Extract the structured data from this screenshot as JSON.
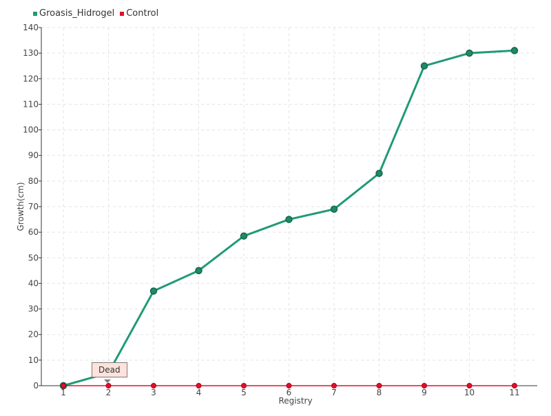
{
  "chart_data": {
    "type": "line",
    "title": "",
    "xlabel": "Registry",
    "ylabel": "Growth(cm)",
    "categories": [
      "1",
      "2",
      "3",
      "4",
      "5",
      "6",
      "7",
      "8",
      "9",
      "10",
      "11"
    ],
    "ylim": [
      0,
      140
    ],
    "yticks": [
      "0",
      "10",
      "20",
      "30",
      "40",
      "50",
      "60",
      "70",
      "80",
      "90",
      "100",
      "110",
      "120",
      "130",
      "140"
    ],
    "grid": true,
    "legend_position": "top-left",
    "series": [
      {
        "name": "Groasis_Hidrogel",
        "color": "#1f9a78",
        "values": [
          0,
          5,
          37,
          45,
          58.5,
          65,
          69,
          83,
          125,
          130,
          131
        ]
      },
      {
        "name": "Control",
        "color": "#e0102a",
        "values": [
          0,
          0,
          0,
          0,
          0,
          0,
          0,
          0,
          0,
          0,
          0
        ]
      }
    ],
    "annotation": {
      "text": "Dead"
    }
  }
}
